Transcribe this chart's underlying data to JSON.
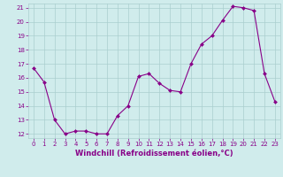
{
  "x": [
    0,
    1,
    2,
    3,
    4,
    5,
    6,
    7,
    8,
    9,
    10,
    11,
    12,
    13,
    14,
    15,
    16,
    17,
    18,
    19,
    20,
    21,
    22,
    23
  ],
  "y": [
    16.7,
    15.7,
    13.0,
    12.0,
    12.2,
    12.2,
    12.0,
    12.0,
    13.3,
    14.0,
    16.1,
    16.3,
    15.6,
    15.1,
    15.0,
    17.0,
    18.4,
    19.0,
    20.1,
    21.1,
    21.0,
    20.8,
    16.3,
    14.3
  ],
  "line_color": "#880088",
  "marker_color": "#880088",
  "bg_color": "#d0ecec",
  "grid_color": "#aacece",
  "xlabel": "Windchill (Refroidissement éolien,°C)",
  "ylim": [
    11.7,
    21.3
  ],
  "xlim": [
    -0.5,
    23.5
  ],
  "yticks": [
    12,
    13,
    14,
    15,
    16,
    17,
    18,
    19,
    20,
    21
  ],
  "xticks": [
    0,
    1,
    2,
    3,
    4,
    5,
    6,
    7,
    8,
    9,
    10,
    11,
    12,
    13,
    14,
    15,
    16,
    17,
    18,
    19,
    20,
    21,
    22,
    23
  ],
  "tick_fontsize": 5.0,
  "xlabel_fontsize": 6.0,
  "line_width": 0.8,
  "marker_size": 2.0
}
